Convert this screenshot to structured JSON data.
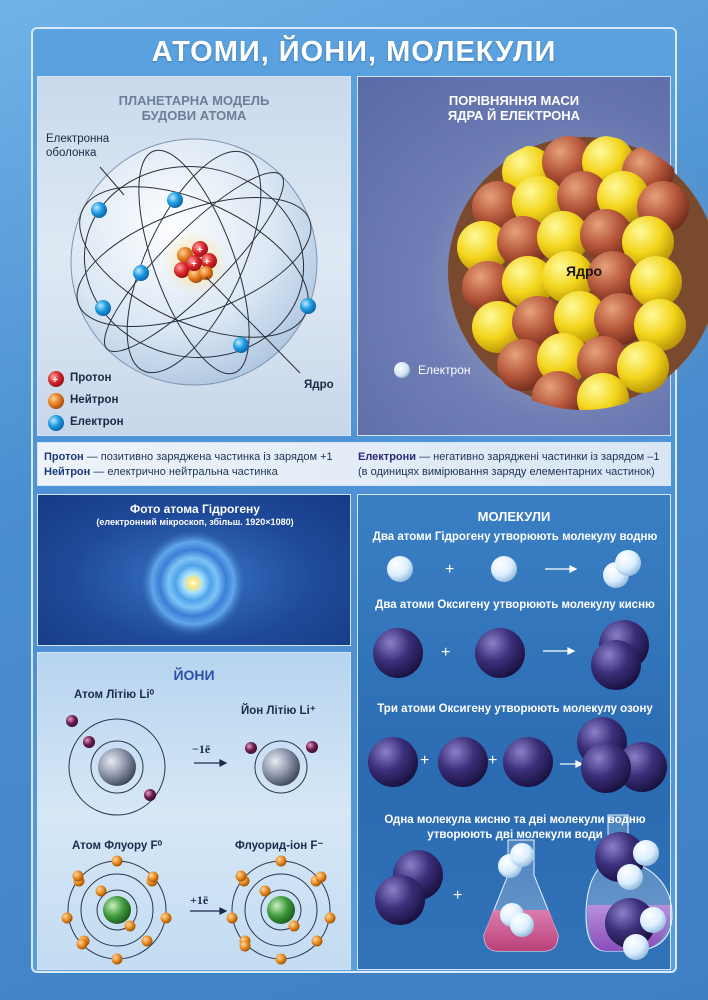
{
  "title": "АТОМИ, ЙОНИ, МОЛЕКУЛИ",
  "planetary": {
    "title_line1": "ПЛАНЕТАРНА МОДЕЛЬ",
    "title_line2": "БУДОВИ АТОМА",
    "shell_label_line1": "Електронна",
    "shell_label_line2": "оболонка",
    "nucleus_label": "Ядро",
    "legend": [
      {
        "label": "Протон",
        "color": "#d8262a"
      },
      {
        "label": "Нейтрон",
        "color": "#e47b1f"
      },
      {
        "label": "Електрон",
        "color": "#1f9ee0"
      }
    ]
  },
  "mass": {
    "title_line1": "ПОРІВНЯННЯ МАСИ",
    "title_line2": "ЯДРА Й ЕЛЕКТРОНА",
    "nucleus_label": "Ядро",
    "electron_label": "Електрон"
  },
  "definitions": {
    "proton_term": "Протон",
    "proton_text": " — позитивно заряджена частинка із зарядом +1",
    "neutron_term": "Нейтрон",
    "neutron_text": " — електрично нейтральна частинка",
    "electrons_term": "Електрони",
    "electrons_text": " — негативно заряджені частинки із зарядом –1",
    "electrons_note": "(в одиницях вимірювання заряду елементарних частинок)"
  },
  "photo": {
    "title": "Фото атома Гідрогену",
    "subtitle": "(електронний мікроскоп, збільш. 1920×1080)"
  },
  "ions": {
    "title": "ЙОНИ",
    "li_atom": "Атом Літію Li⁰",
    "li_ion": "Йон Літію Li⁺",
    "li_arrow": "−1ē",
    "f_atom": "Атом Флуору F⁰",
    "f_ion": "Флуорид-іон F⁻",
    "f_arrow": "+1ē"
  },
  "molecules": {
    "title": "МОЛЕКУЛИ",
    "h2": "Два атоми Гідрогену утворюють молекулу водню",
    "o2": "Два атоми Оксигену утворюють молекулу кисню",
    "o3": "Три атоми Оксигену утворюють молекулу озону",
    "water_line1": "Одна молекула кисню та дві молекули водню",
    "water_line2": "утворюють дві молекули води",
    "plus": "+"
  },
  "colors": {
    "proton": "#d8262a",
    "neutron": "#e47b1f",
    "electron": "#1f9ee0",
    "oxygen": "#3b2f7a",
    "hydrogen": "#e6f2ff",
    "lithium_electron": "#6a1d4e",
    "fluorine_electron": "#e88a1e"
  }
}
